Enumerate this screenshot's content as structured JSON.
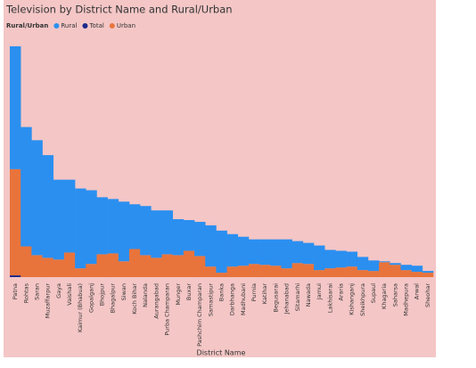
{
  "chart_data": {
    "type": "bar",
    "stacked": true,
    "title": "Television by District Name and Rural/Urban",
    "legend_title": "Rural/Urban",
    "x_label": "District Name",
    "categories": [
      "Patna",
      "Rohtas",
      "Saran",
      "Muzaffarpur",
      "Gaya",
      "Vaishali",
      "Kaimur (Bhabua)",
      "Gopalganj",
      "Bhojpur",
      "Bhagalpur",
      "Siwan",
      "Koch Bihar",
      "Nalanda",
      "Aurangabad",
      "Purba Champaran",
      "Munger",
      "Buxar",
      "Pashchim Champaran",
      "Samastipur",
      "Banka",
      "Darbhanga",
      "Madhubani",
      "Purnia",
      "Katihar",
      "Begusarai",
      "Jehanabad",
      "Sitamarhi",
      "Nawada",
      "Jamui",
      "Lakhisarai",
      "Araria",
      "Kishanganj",
      "Sheikhpura",
      "Supaul",
      "Khagaria",
      "Saharsa",
      "Madhepura",
      "Arwal",
      "Sheohar"
    ],
    "series": [
      {
        "name": "Total",
        "color": "#1c2a8a",
        "values": [
          2,
          0,
          0,
          0,
          0,
          0,
          0,
          0,
          0,
          0,
          0,
          0,
          0,
          0,
          0,
          0,
          0,
          0,
          0,
          0,
          0,
          0,
          0,
          0,
          0,
          0,
          0,
          0,
          0,
          0,
          0,
          0,
          0,
          0,
          0,
          0,
          0,
          0,
          0
        ]
      },
      {
        "name": "Urban",
        "color": "#e8743b",
        "values": [
          121,
          35,
          25,
          22,
          20,
          28,
          10,
          15,
          26,
          27,
          18,
          32,
          25,
          22,
          26,
          25,
          30,
          24,
          12,
          5,
          12,
          13,
          15,
          14,
          13,
          10,
          16,
          15,
          8,
          10,
          11,
          12,
          8,
          7,
          17,
          14,
          8,
          6,
          5
        ]
      },
      {
        "name": "Rural",
        "color": "#2b8ff0",
        "values": [
          140,
          136,
          131,
          117,
          91,
          83,
          91,
          84,
          65,
          62,
          68,
          51,
          56,
          54,
          50,
          41,
          35,
          39,
          47,
          48,
          37,
          33,
          28,
          29,
          30,
          33,
          25,
          24,
          28,
          21,
          19,
          17,
          15,
          12,
          1,
          2,
          6,
          7,
          2
        ]
      }
    ],
    "legend_order": [
      2,
      0,
      1
    ],
    "ylim": [
      0,
      265
    ]
  }
}
